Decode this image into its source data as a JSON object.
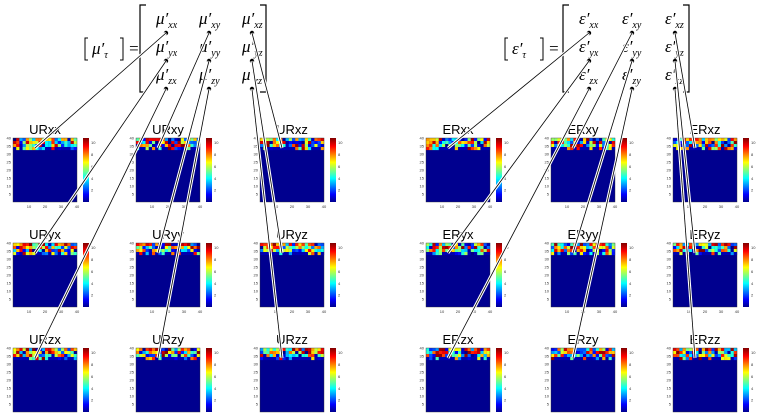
{
  "left": {
    "lhs": {
      "symbol": "μ′",
      "sub": "τ"
    },
    "equals": "=",
    "matrix": [
      [
        {
          "symbol": "μ′",
          "sub": "xx"
        },
        {
          "symbol": "μ′",
          "sub": "xy"
        },
        {
          "symbol": "μ′",
          "sub": "xz"
        }
      ],
      [
        {
          "symbol": "μ′",
          "sub": "yx"
        },
        {
          "symbol": "μ′",
          "sub": "yy"
        },
        {
          "symbol": "μ′",
          "sub": "yz"
        }
      ],
      [
        {
          "symbol": "μ′",
          "sub": "zx"
        },
        {
          "symbol": "μ′",
          "sub": "zy"
        },
        {
          "symbol": "μ′",
          "sub": "zz"
        }
      ]
    ],
    "panels": [
      [
        "URxx",
        "URxy",
        "URxz"
      ],
      [
        "URyx",
        "URyy",
        "URyz"
      ],
      [
        "URzx",
        "URzy",
        "URzz"
      ]
    ]
  },
  "right": {
    "lhs": {
      "symbol": "ε′",
      "sub": "τ"
    },
    "equals": "=",
    "matrix": [
      [
        {
          "symbol": "ε′",
          "sub": "xx"
        },
        {
          "symbol": "ε′",
          "sub": "xy"
        },
        {
          "symbol": "ε′",
          "sub": "xz"
        }
      ],
      [
        {
          "symbol": "ε′",
          "sub": "yx"
        },
        {
          "symbol": "ε′",
          "sub": "yy"
        },
        {
          "symbol": "ε′",
          "sub": "yz"
        }
      ],
      [
        {
          "symbol": "ε′",
          "sub": "zx"
        },
        {
          "symbol": "ε′",
          "sub": "zy"
        },
        {
          "symbol": "ε′",
          "sub": "zz"
        }
      ]
    ],
    "panels": [
      [
        "ERxx",
        "ERxy",
        "ERxz"
      ],
      [
        "ERyx",
        "ERyy",
        "ERyz"
      ],
      [
        "ERzx",
        "ERzy",
        "ERzz"
      ]
    ]
  },
  "axes": {
    "yticks": [
      "5",
      "10",
      "15",
      "20",
      "25",
      "30",
      "35",
      "40"
    ],
    "xticks": [
      "10",
      "20",
      "30",
      "40"
    ],
    "cbticks": [
      "2",
      "4",
      "6",
      "8",
      "10"
    ]
  }
}
